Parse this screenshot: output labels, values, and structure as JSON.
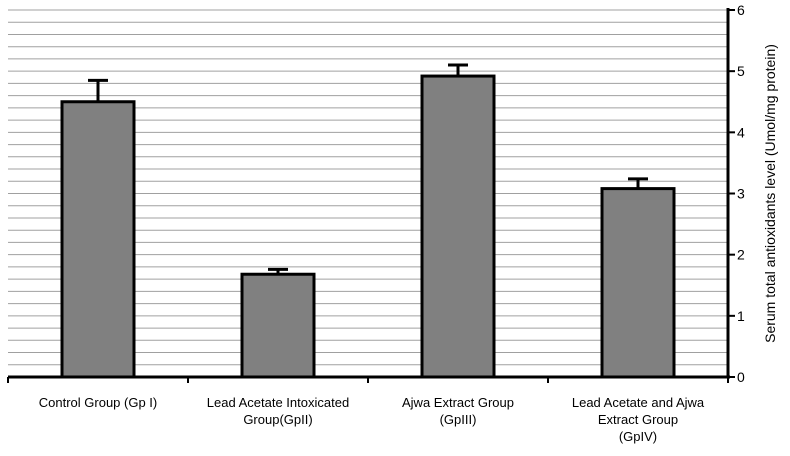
{
  "chart_data": {
    "type": "bar",
    "categories": [
      [
        "Control Group (Gp I)"
      ],
      [
        "Lead Acetate Intoxicated",
        "Group(GpII)"
      ],
      [
        "Ajwa Extract Group",
        "(GpIII)"
      ],
      [
        "Lead Acetate  and Ajwa",
        "Extract Group",
        "(GpIV)"
      ]
    ],
    "values": [
      4.5,
      1.68,
      4.92,
      3.08
    ],
    "errors": [
      0.35,
      0.08,
      0.18,
      0.16
    ],
    "ylabel": "Serum total antioxidants level (Umol/mg protein)",
    "ylim": [
      0,
      6
    ],
    "yticks": [
      0,
      1,
      2,
      3,
      4,
      5,
      6
    ],
    "y_axis_side": "right",
    "grid": true,
    "minor_grid_step": 0.2,
    "bar_color": "#808080",
    "bar_edge_color": "#000000",
    "grid_color": "#a0a0a0"
  }
}
